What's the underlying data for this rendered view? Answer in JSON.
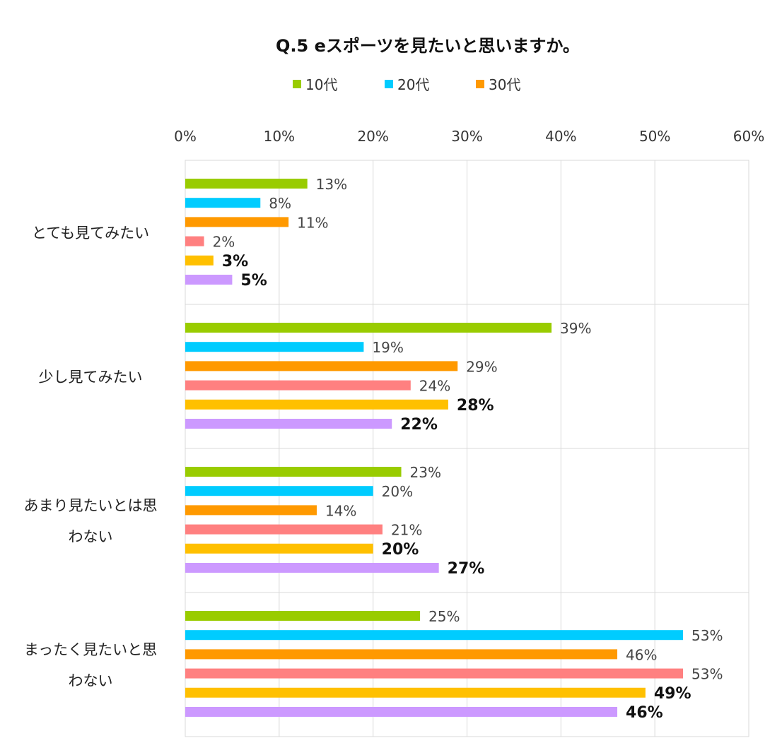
{
  "chart_data": {
    "type": "bar",
    "orientation": "horizontal",
    "title": "Q.5 eスポーツを見たいと思いますか。",
    "categories": [
      [
        "とても見てみたい"
      ],
      [
        "少し見てみたい"
      ],
      [
        "あまり見たいとは思",
        "わない"
      ],
      [
        "まったく見たいと思",
        "わない"
      ]
    ],
    "series": [
      {
        "name": "10代",
        "color": "#99CC00",
        "values": [
          13,
          39,
          23,
          25
        ],
        "labels": [
          "13%",
          "39%",
          "23%",
          "25%"
        ],
        "label_style": "light"
      },
      {
        "name": "20代",
        "color": "#00CCFF",
        "values": [
          8,
          19,
          20,
          53
        ],
        "labels": [
          "8%",
          "19%",
          "20%",
          "53%"
        ],
        "label_style": "light"
      },
      {
        "name": "30代",
        "color": "#FF9900",
        "values": [
          11,
          29,
          14,
          46
        ],
        "labels": [
          "11%",
          "29%",
          "14%",
          "46%"
        ],
        "label_style": "light"
      },
      {
        "color": "#FF8080",
        "values": [
          2,
          24,
          21,
          53
        ],
        "labels": [
          "2%",
          "24%",
          "21%",
          "53%"
        ],
        "label_style": "light"
      },
      {
        "color": "#FFC000",
        "values": [
          3,
          28,
          20,
          49
        ],
        "labels": [
          "3%",
          "28%",
          "20%",
          "49%"
        ],
        "label_style": "bold"
      },
      {
        "color": "#CC99FF",
        "values": [
          5,
          22,
          27,
          46
        ],
        "labels": [
          "5%",
          "22%",
          "27%",
          "46%"
        ],
        "label_style": "bold"
      }
    ],
    "xlim": [
      0,
      60
    ],
    "x_ticks": [
      "0%",
      "10%",
      "20%",
      "30%",
      "40%",
      "50%",
      "60%"
    ],
    "x_tick_values": [
      0,
      10,
      20,
      30,
      40,
      50,
      60
    ],
    "xaxis_position": "top",
    "grid": true,
    "legend_position": "top",
    "legend_series_count": 3
  }
}
